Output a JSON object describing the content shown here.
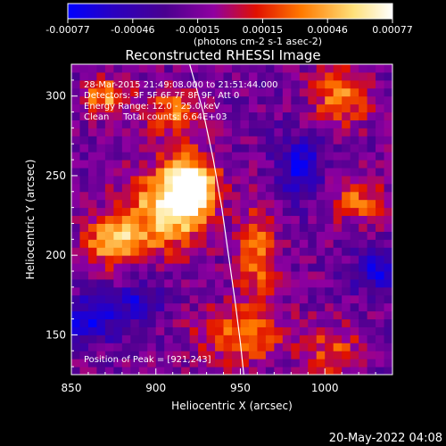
{
  "chart_data": {
    "type": "heatmap",
    "title": "Reconstructed RHESSI Image",
    "xlabel": "Heliocentric X (arcsec)",
    "ylabel": "Heliocentric Y (arcsec)",
    "xlim": [
      850,
      1040
    ],
    "ylim": [
      125,
      320
    ],
    "x_ticks": [
      850,
      900,
      950,
      1000
    ],
    "y_ticks": [
      150,
      200,
      250,
      300
    ],
    "colorbar": {
      "label": "(photons cm-2 s-1 asec-2)",
      "range": [
        -0.00077,
        0.00077
      ],
      "ticks": [
        "-0.00077",
        "-0.00046",
        "-0.00015",
        "0.00015",
        "0.00046",
        "0.00077"
      ],
      "colormap": [
        "#0000ff",
        "#2a00c0",
        "#4a0090",
        "#9000a0",
        "#e01000",
        "#ff7a00",
        "#ffe07a",
        "#ffffff"
      ]
    },
    "annotations": [
      "28-Mar-2015 21:49:08.000 to 21:51:44.000",
      "Detectors: 3F 5F 6F 7F 8F 9F, Att 0",
      "Energy Range: 12.0 - 25.0 keV",
      "Clean     Total counts: 6.64E+03"
    ],
    "peak_label": "Position of Peak = [921,243]",
    "peak": [
      921,
      243
    ],
    "limb_curve": [
      [
        920,
        320
      ],
      [
        928,
        290
      ],
      [
        934,
        260
      ],
      [
        939,
        230
      ],
      [
        943,
        200
      ],
      [
        947,
        170
      ],
      [
        950,
        145
      ],
      [
        952,
        125
      ]
    ],
    "intensity_grid": {
      "x_step": 5,
      "y_step": 5,
      "sources": [
        {
          "x": 921,
          "y": 243,
          "sx": 10,
          "sy": 14,
          "amp": 1.0
        },
        {
          "x": 905,
          "y": 230,
          "sx": 16,
          "sy": 18,
          "amp": 0.8
        },
        {
          "x": 875,
          "y": 208,
          "sx": 12,
          "sy": 10,
          "amp": 0.75
        },
        {
          "x": 870,
          "y": 300,
          "sx": 10,
          "sy": 8,
          "amp": 0.6
        },
        {
          "x": 910,
          "y": 290,
          "sx": 10,
          "sy": 10,
          "amp": 0.55
        },
        {
          "x": 960,
          "y": 200,
          "sx": 8,
          "sy": 25,
          "amp": 0.5
        },
        {
          "x": 950,
          "y": 150,
          "sx": 18,
          "sy": 12,
          "amp": 0.55
        },
        {
          "x": 1010,
          "y": 300,
          "sx": 12,
          "sy": 12,
          "amp": 0.6
        },
        {
          "x": 1020,
          "y": 235,
          "sx": 12,
          "sy": 10,
          "amp": 0.45
        },
        {
          "x": 1005,
          "y": 140,
          "sx": 12,
          "sy": 12,
          "amp": 0.4
        },
        {
          "x": 860,
          "y": 160,
          "sx": 12,
          "sy": 10,
          "amp": -0.55
        },
        {
          "x": 890,
          "y": 170,
          "sx": 10,
          "sy": 10,
          "amp": -0.4
        },
        {
          "x": 985,
          "y": 255,
          "sx": 10,
          "sy": 14,
          "amp": -0.5
        },
        {
          "x": 1030,
          "y": 190,
          "sx": 10,
          "sy": 10,
          "amp": -0.45
        }
      ]
    }
  },
  "timestamp": "20-May-2022 04:08"
}
